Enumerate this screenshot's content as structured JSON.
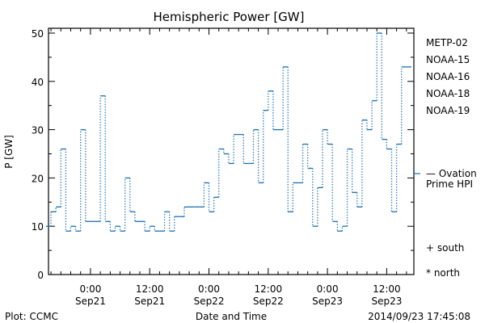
{
  "chart_data": {
    "type": "line",
    "title": "Hemispheric Power [GW]",
    "ylabel": "P [GW]",
    "xlabel": "Date and Time",
    "ylim": [
      0,
      51
    ],
    "xlim": [
      "2014-09-20 15:30",
      "2014-09-23 17:30"
    ],
    "yticks": [
      "0",
      "10",
      "20",
      "30",
      "40",
      "50"
    ],
    "xticks": [
      {
        "t": "2014-09-21 00:00",
        "l1": "0:00",
        "l2": "Sep21"
      },
      {
        "t": "2014-09-21 12:00",
        "l1": "12:00",
        "l2": "Sep21"
      },
      {
        "t": "2014-09-22 00:00",
        "l1": "0:00",
        "l2": "Sep22"
      },
      {
        "t": "2014-09-22 12:00",
        "l1": "12:00",
        "l2": "Sep22"
      },
      {
        "t": "2014-09-23 00:00",
        "l1": "0:00",
        "l2": "Sep23"
      },
      {
        "t": "2014-09-23 12:00",
        "l1": "12:00",
        "l2": "Sep23"
      }
    ],
    "legend": [
      {
        "name": "METP-02",
        "color": "#000000"
      },
      {
        "name": "NOAA-15",
        "color": "#1a3aa8"
      },
      {
        "name": "NOAA-16",
        "color": "#19c6c6"
      },
      {
        "name": "NOAA-18",
        "color": "#2ecc5a"
      },
      {
        "name": "NOAA-19",
        "color": "#f39a1e"
      }
    ],
    "ovation_label_1": "— Ovation",
    "ovation_label_2": "Prime HPI",
    "ovation_color": "#1a6fb5",
    "marker_south": "+ south",
    "marker_north": "* north",
    "series": [
      {
        "name": "Ovation Prime HPI",
        "color": "#1a6fb5",
        "x": [
          "2014-09-20 15:30",
          "2014-09-20 16:30",
          "2014-09-20 17:30",
          "2014-09-20 18:30",
          "2014-09-20 19:30",
          "2014-09-20 20:30",
          "2014-09-20 21:30",
          "2014-09-20 22:30",
          "2014-09-20 23:30",
          "2014-09-21 00:30",
          "2014-09-21 01:30",
          "2014-09-21 02:30",
          "2014-09-21 03:30",
          "2014-09-21 04:30",
          "2014-09-21 05:30",
          "2014-09-21 06:30",
          "2014-09-21 07:30",
          "2014-09-21 08:30",
          "2014-09-21 09:30",
          "2014-09-21 10:30",
          "2014-09-21 11:30",
          "2014-09-21 12:30",
          "2014-09-21 13:30",
          "2014-09-21 14:30",
          "2014-09-21 15:30",
          "2014-09-21 16:30",
          "2014-09-21 17:30",
          "2014-09-21 18:30",
          "2014-09-21 19:30",
          "2014-09-21 20:30",
          "2014-09-21 21:30",
          "2014-09-21 22:30",
          "2014-09-21 23:30",
          "2014-09-22 00:30",
          "2014-09-22 01:30",
          "2014-09-22 02:30",
          "2014-09-22 03:30",
          "2014-09-22 04:30",
          "2014-09-22 05:30",
          "2014-09-22 06:30",
          "2014-09-22 07:30",
          "2014-09-22 08:30",
          "2014-09-22 09:30",
          "2014-09-22 10:30",
          "2014-09-22 11:30",
          "2014-09-22 12:30",
          "2014-09-22 13:30",
          "2014-09-22 14:30",
          "2014-09-22 15:30",
          "2014-09-22 16:30",
          "2014-09-22 17:30",
          "2014-09-22 18:30",
          "2014-09-22 19:30",
          "2014-09-22 20:30",
          "2014-09-22 21:30",
          "2014-09-22 22:30",
          "2014-09-22 23:30",
          "2014-09-23 00:30",
          "2014-09-23 01:30",
          "2014-09-23 02:30",
          "2014-09-23 03:30",
          "2014-09-23 04:30",
          "2014-09-23 05:30",
          "2014-09-23 06:30",
          "2014-09-23 07:30",
          "2014-09-23 08:30",
          "2014-09-23 09:30",
          "2014-09-23 10:30",
          "2014-09-23 11:30",
          "2014-09-23 12:30",
          "2014-09-23 13:30",
          "2014-09-23 14:30",
          "2014-09-23 15:30",
          "2014-09-23 16:30"
        ],
        "values": [
          10,
          13,
          14,
          26,
          9,
          10,
          9,
          30,
          11,
          11,
          11,
          37,
          11,
          9,
          10,
          9,
          20,
          13,
          11,
          11,
          9,
          10,
          9,
          9,
          13,
          9,
          12,
          12,
          14,
          14,
          14,
          14,
          19,
          13,
          16,
          26,
          25,
          23,
          29,
          29,
          23,
          23,
          30,
          19,
          34,
          38,
          30,
          30,
          43,
          13,
          19,
          19,
          27,
          22,
          10,
          18,
          30,
          27,
          11,
          9,
          10,
          26,
          17,
          14,
          32,
          30,
          36,
          50,
          28,
          26,
          13,
          27,
          43,
          43
        ]
      }
    ]
  },
  "footer": {
    "plot_credit": "Plot: CCMC",
    "timestamp": "2014/09/23 17:45:08"
  }
}
